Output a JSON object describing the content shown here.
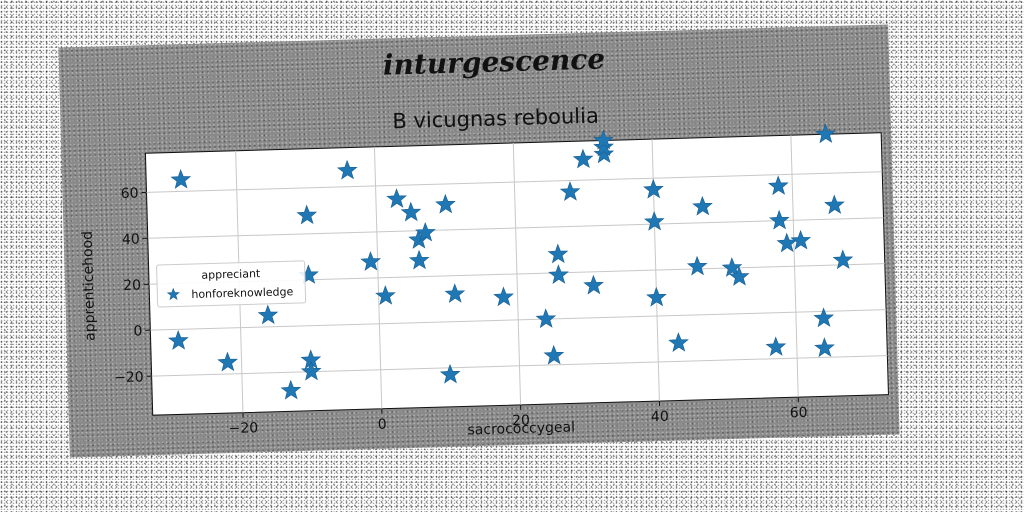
{
  "chart_data": {
    "type": "scatter",
    "suptitle": "inturgescence",
    "title": "B vicugnas reboulia",
    "xlabel": "sacrococcygeal",
    "ylabel": "apprenticehood",
    "xlim": [
      -33,
      73
    ],
    "ylim": [
      -37,
      77
    ],
    "xticks": [
      -20,
      0,
      20,
      40,
      60
    ],
    "yticks": [
      -20,
      0,
      20,
      40,
      60
    ],
    "grid": true,
    "legend": {
      "title": "appreciant",
      "placement": "center-left"
    },
    "series": [
      {
        "name": "honforeknowledge",
        "marker": "star",
        "color": "#1f77b4",
        "x": [
          -28,
          -10,
          -4,
          -1,
          -10,
          -29,
          -22,
          -16,
          -10,
          -10,
          -13,
          3,
          5,
          6,
          7,
          6,
          10,
          1,
          11,
          10,
          18,
          28,
          30,
          33,
          33,
          33,
          26,
          26,
          24,
          25,
          31,
          40,
          40,
          47,
          46,
          40,
          43,
          58,
          58,
          59,
          61,
          51,
          52,
          57,
          65,
          66,
          67,
          64,
          64
        ],
        "y": [
          65,
          48,
          67,
          27,
          22,
          -5,
          -15,
          5,
          -15,
          -20,
          -28,
          54,
          48,
          36,
          39,
          27,
          51,
          12,
          12,
          -23,
          10,
          55,
          69,
          71,
          74,
          77,
          28,
          19,
          0,
          -16,
          14,
          55,
          41,
          47,
          21,
          8,
          -12,
          55,
          40,
          30,
          31,
          20,
          16,
          -15,
          77,
          46,
          22,
          -3,
          -16
        ]
      }
    ]
  }
}
